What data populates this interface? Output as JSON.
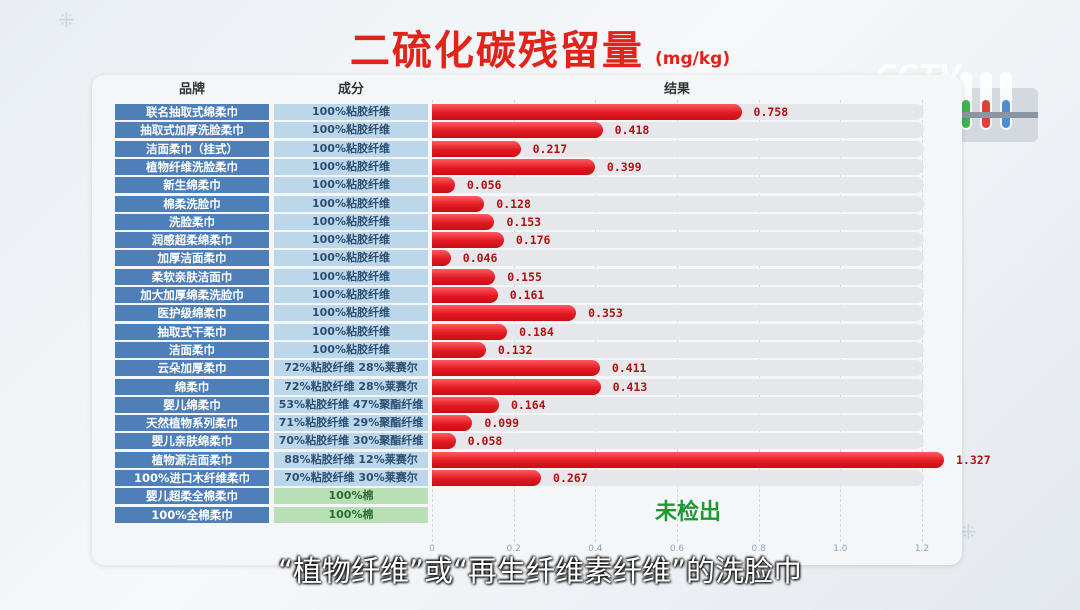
{
  "header": {
    "title": "二硫化碳残留量",
    "unit": "(mg/kg)",
    "logo": "CCTV"
  },
  "columns": {
    "brand": "品牌",
    "composition": "成分",
    "result": "结果"
  },
  "not_detected": "未检出",
  "subtitle": "“植物纤维”或“再生纤维素纤维”的洗脸巾",
  "colors": {
    "title": "#e2231a",
    "bar": "#e11a22",
    "brand_bg": "#4f7fb9",
    "comp_bg": "#bcd6ea",
    "cotton_bg": "#b8dfb6",
    "not_detected": "#1e9a32"
  },
  "chart_data": {
    "type": "bar",
    "orientation": "horizontal",
    "title": "二硫化碳残留量",
    "unit": "mg/kg",
    "xlim": [
      0,
      1.2
    ],
    "x_ticks": [
      "0",
      "0.2",
      "0.4",
      "0.6",
      "0.8",
      "1.0",
      "1.2"
    ],
    "grid": true,
    "rows": [
      {
        "brand": "联名抽取式绵柔巾",
        "composition": "100%粘胶纤维",
        "value": 0.758,
        "label": "0.758"
      },
      {
        "brand": "抽取式加厚洗脸柔巾",
        "composition": "100%粘胶纤维",
        "value": 0.418,
        "label": "0.418"
      },
      {
        "brand": "洁面柔巾（挂式）",
        "composition": "100%粘胶纤维",
        "value": 0.217,
        "label": "0.217"
      },
      {
        "brand": "植物纤维洗脸柔巾",
        "composition": "100%粘胶纤维",
        "value": 0.399,
        "label": "0.399"
      },
      {
        "brand": "新生绵柔巾",
        "composition": "100%粘胶纤维",
        "value": 0.056,
        "label": "0.056"
      },
      {
        "brand": "棉柔洗脸巾",
        "composition": "100%粘胶纤维",
        "value": 0.128,
        "label": "0.128"
      },
      {
        "brand": "洗脸柔巾",
        "composition": "100%粘胶纤维",
        "value": 0.153,
        "label": "0.153"
      },
      {
        "brand": "润感超柔绵柔巾",
        "composition": "100%粘胶纤维",
        "value": 0.176,
        "label": "0.176"
      },
      {
        "brand": "加厚洁面柔巾",
        "composition": "100%粘胶纤维",
        "value": 0.046,
        "label": "0.046"
      },
      {
        "brand": "柔软亲肤洁面巾",
        "composition": "100%粘胶纤维",
        "value": 0.155,
        "label": "0.155"
      },
      {
        "brand": "加大加厚绵柔洗脸巾",
        "composition": "100%粘胶纤维",
        "value": 0.161,
        "label": "0.161"
      },
      {
        "brand": "医护级绵柔巾",
        "composition": "100%粘胶纤维",
        "value": 0.353,
        "label": "0.353"
      },
      {
        "brand": "抽取式干柔巾",
        "composition": "100%粘胶纤维",
        "value": 0.184,
        "label": "0.184"
      },
      {
        "brand": "洁面柔巾",
        "composition": "100%粘胶纤维",
        "value": 0.132,
        "label": "0.132"
      },
      {
        "brand": "云朵加厚柔巾",
        "composition": "72%粘胶纤维 28%莱赛尔",
        "value": 0.411,
        "label": "0.411"
      },
      {
        "brand": "绵柔巾",
        "composition": "72%粘胶纤维 28%莱赛尔",
        "value": 0.413,
        "label": "0.413"
      },
      {
        "brand": "婴儿绵柔巾",
        "composition": "53%粘胶纤维 47%聚酯纤维",
        "value": 0.164,
        "label": "0.164"
      },
      {
        "brand": "天然植物系列柔巾",
        "composition": "71%粘胶纤维 29%聚酯纤维",
        "value": 0.099,
        "label": "0.099"
      },
      {
        "brand": "婴儿亲肤绵柔巾",
        "composition": "70%粘胶纤维 30%聚酯纤维",
        "value": 0.058,
        "label": "0.058"
      },
      {
        "brand": "植物源洁面柔巾",
        "composition": "88%粘胶纤维 12%莱赛尔",
        "value": 1.327,
        "label": "1.327"
      },
      {
        "brand": "100%进口木纤维柔巾",
        "composition": "70%粘胶纤维 30%莱赛尔",
        "value": 0.267,
        "label": "0.267"
      },
      {
        "brand": "婴儿超柔全棉柔巾",
        "composition": "100%棉",
        "value": null,
        "label": ""
      },
      {
        "brand": "100%全棉柔巾",
        "composition": "100%棉",
        "value": null,
        "label": ""
      }
    ]
  }
}
